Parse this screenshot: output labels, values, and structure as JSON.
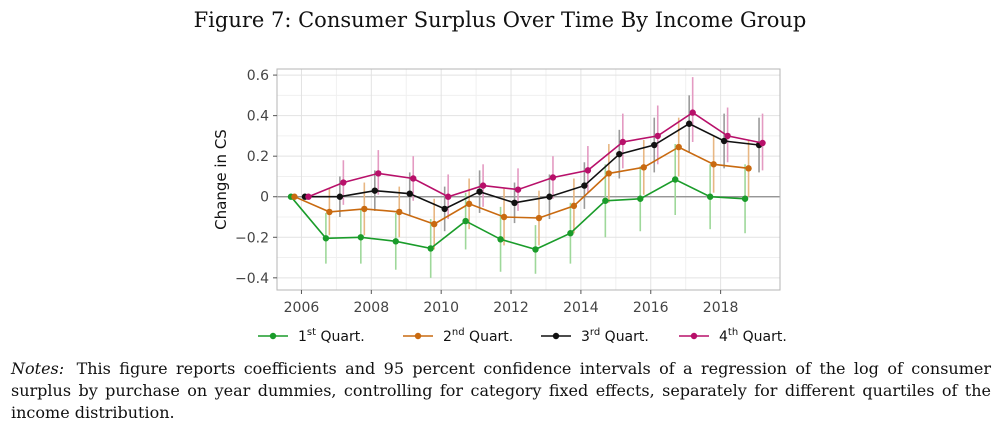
{
  "figure_title": "Figure 7: Consumer Surplus Over Time By Income Group",
  "notes": {
    "lead": "Notes:",
    "text": "This figure reports coefficients and 95 percent confidence intervals of a regression of the log of consumer surplus by purchase on year dummies, controlling for category fixed effects, separately for different quartiles of the income distribution."
  },
  "chart_data": {
    "type": "line",
    "title": "",
    "xlabel": "",
    "ylabel": "Change in CS",
    "xlim": [
      2005.3,
      2019.7
    ],
    "ylim": [
      -0.46,
      0.63
    ],
    "xticks": [
      2006,
      2008,
      2010,
      2012,
      2014,
      2016,
      2018
    ],
    "yticks": [
      -0.4,
      -0.2,
      0,
      0.2,
      0.4,
      0.6
    ],
    "ytick_labels": [
      "−0.4",
      "−0.2",
      "0",
      "0.2",
      "0.4",
      "0.6"
    ],
    "grid": true,
    "legend_position": "bottom",
    "series": [
      {
        "name": "1st Quart.",
        "sup": "st",
        "base": "1",
        "label_tail": " Quart.",
        "color": "#1a9c2a",
        "ci_color": "#9ed89a",
        "x": [
          2005.7,
          2006.7,
          2007.7,
          2008.7,
          2009.7,
          2010.7,
          2011.7,
          2012.7,
          2013.7,
          2014.7,
          2015.7,
          2016.7,
          2017.7,
          2018.7
        ],
        "y": [
          0,
          -0.205,
          -0.2,
          -0.22,
          -0.255,
          -0.12,
          -0.21,
          -0.26,
          -0.18,
          -0.02,
          -0.01,
          0.085,
          0,
          -0.01
        ],
        "lo": [
          0,
          -0.33,
          -0.33,
          -0.36,
          -0.4,
          -0.26,
          -0.37,
          -0.38,
          -0.33,
          -0.2,
          -0.17,
          -0.09,
          -0.16,
          -0.18
        ],
        "hi": [
          0,
          -0.08,
          -0.06,
          -0.08,
          -0.11,
          0.02,
          -0.05,
          -0.14,
          -0.03,
          0.16,
          0.15,
          0.26,
          0.16,
          0.16
        ]
      },
      {
        "name": "2nd Quart.",
        "sup": "nd",
        "base": "2",
        "label_tail": " Quart.",
        "color": "#c96a10",
        "ci_color": "#e8b783",
        "x": [
          2005.8,
          2006.8,
          2007.8,
          2008.8,
          2009.8,
          2010.8,
          2011.8,
          2012.8,
          2013.8,
          2014.8,
          2015.8,
          2016.8,
          2017.8,
          2018.8
        ],
        "y": [
          0,
          -0.075,
          -0.06,
          -0.075,
          -0.135,
          -0.035,
          -0.1,
          -0.105,
          -0.045,
          0.115,
          0.145,
          0.245,
          0.16,
          0.14
        ],
        "lo": [
          0,
          -0.19,
          -0.19,
          -0.2,
          -0.26,
          -0.16,
          -0.24,
          -0.24,
          -0.18,
          -0.03,
          0.01,
          0.1,
          0.02,
          0
        ],
        "hi": [
          0,
          0.04,
          0.07,
          0.05,
          -0.01,
          0.09,
          0.04,
          0.03,
          0.09,
          0.26,
          0.28,
          0.39,
          0.3,
          0.28
        ]
      },
      {
        "name": "3rd Quart.",
        "sup": "rd",
        "base": "3",
        "label_tail": " Quart.",
        "color": "#111111",
        "ci_color": "#9a9a9a",
        "x": [
          2006.1,
          2007.1,
          2008.1,
          2009.1,
          2010.1,
          2011.1,
          2012.1,
          2013.1,
          2014.1,
          2015.1,
          2016.1,
          2017.1,
          2018.1,
          2019.1
        ],
        "y": [
          0,
          0,
          0.03,
          0.015,
          -0.06,
          0.025,
          -0.03,
          0,
          0.055,
          0.21,
          0.255,
          0.36,
          0.275,
          0.255
        ],
        "lo": [
          0,
          -0.1,
          -0.07,
          -0.09,
          -0.17,
          -0.08,
          -0.13,
          -0.11,
          -0.06,
          0.09,
          0.12,
          0.22,
          0.14,
          0.12
        ],
        "hi": [
          0,
          0.1,
          0.13,
          0.12,
          0.05,
          0.13,
          0.07,
          0.11,
          0.17,
          0.33,
          0.39,
          0.5,
          0.41,
          0.39
        ]
      },
      {
        "name": "4th Quart.",
        "sup": "th",
        "base": "4",
        "label_tail": " Quart.",
        "color": "#b8106a",
        "ci_color": "#e49ac2",
        "x": [
          2006.2,
          2007.2,
          2008.2,
          2009.2,
          2010.2,
          2011.2,
          2012.2,
          2013.2,
          2014.2,
          2015.2,
          2016.2,
          2017.2,
          2018.2,
          2019.2
        ],
        "y": [
          0,
          0.07,
          0.115,
          0.09,
          0,
          0.055,
          0.035,
          0.095,
          0.13,
          0.27,
          0.3,
          0.415,
          0.3,
          0.265
        ],
        "lo": [
          0,
          -0.04,
          0.01,
          -0.02,
          -0.11,
          -0.05,
          -0.07,
          -0.01,
          0.02,
          0.14,
          0.16,
          0.27,
          0.17,
          0.13
        ],
        "hi": [
          0,
          0.18,
          0.23,
          0.2,
          0.11,
          0.16,
          0.14,
          0.2,
          0.25,
          0.41,
          0.45,
          0.59,
          0.44,
          0.41
        ]
      }
    ]
  }
}
